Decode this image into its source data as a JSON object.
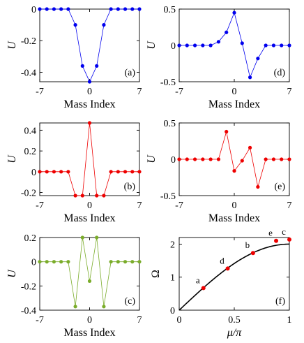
{
  "panels": [
    {
      "id": "a",
      "type": "line",
      "panel_label": "(a)",
      "ylabel": "U",
      "xlabel": "Mass Index",
      "color": "#0000ee",
      "xlim": [
        -7,
        7
      ],
      "ylim": [
        -0.46,
        0.0
      ],
      "yticks": [
        0,
        -0.2,
        -0.4
      ],
      "ytick_labels": [
        "0",
        "-0.2",
        "-0.4"
      ],
      "xticks": [
        -7,
        0,
        7
      ],
      "xtick_labels": [
        "-7",
        "0",
        "7"
      ],
      "x": [
        -7,
        -6,
        -5,
        -4,
        -3,
        -2,
        -1,
        0,
        1,
        2,
        3,
        4,
        5,
        6,
        7
      ],
      "y": [
        0,
        0,
        0,
        0,
        0,
        -0.1,
        -0.36,
        -0.46,
        -0.36,
        -0.1,
        0,
        0,
        0,
        0,
        0
      ]
    },
    {
      "id": "b",
      "type": "line",
      "panel_label": "(b)",
      "ylabel": "U",
      "xlabel": "Mass Index",
      "color": "#ee0000",
      "xlim": [
        -7,
        7
      ],
      "ylim": [
        -0.23,
        0.47
      ],
      "yticks": [
        0.4,
        0.2,
        0,
        -0.2
      ],
      "ytick_labels": [
        "0.4",
        "0.2",
        "0",
        "-0.2"
      ],
      "xticks": [
        -7,
        0,
        7
      ],
      "xtick_labels": [
        "-7",
        "0",
        "7"
      ],
      "x": [
        -7,
        -6,
        -5,
        -4,
        -3,
        -2,
        -1,
        0,
        1,
        2,
        3,
        4,
        5,
        6,
        7
      ],
      "y": [
        0,
        0,
        0,
        0,
        0,
        -0.23,
        -0.23,
        0.47,
        -0.23,
        -0.23,
        0,
        0,
        0,
        0,
        0
      ]
    },
    {
      "id": "c",
      "type": "line",
      "panel_label": "(c)",
      "ylabel": "U",
      "xlabel": "Mass Index",
      "color": "#7aac2a",
      "xlim": [
        -7,
        7
      ],
      "ylim": [
        -0.4,
        0.2
      ],
      "yticks": [
        0.2,
        0,
        -0.2,
        -0.4
      ],
      "ytick_labels": [
        "0.2",
        "0",
        "-0.2",
        "-0.4"
      ],
      "xticks": [
        -7,
        0,
        7
      ],
      "xtick_labels": [
        "-7",
        "0",
        "7"
      ],
      "x": [
        -7,
        -6,
        -5,
        -4,
        -3,
        -2,
        -1,
        0,
        1,
        2,
        3,
        4,
        5,
        6,
        7
      ],
      "y": [
        0,
        0,
        0,
        0,
        0,
        -0.37,
        0.2,
        -0.16,
        0.2,
        -0.37,
        0,
        0,
        0,
        0,
        0
      ]
    },
    {
      "id": "d",
      "type": "line",
      "panel_label": "(d)",
      "ylabel": "U",
      "xlabel": "Mass Index",
      "color": "#0000ee",
      "xlim": [
        -7,
        7
      ],
      "ylim": [
        -0.5,
        0.5
      ],
      "yticks": [
        0.5,
        0,
        -0.5
      ],
      "ytick_labels": [
        "0.5",
        "0",
        "-0.5"
      ],
      "xticks": [
        -7,
        0,
        7
      ],
      "xtick_labels": [
        "-7",
        "0",
        "7"
      ],
      "x": [
        -7,
        -6,
        -5,
        -4,
        -3,
        -2,
        -1,
        0,
        1,
        2,
        3,
        4,
        5,
        6,
        7
      ],
      "y": [
        0,
        0,
        0,
        0,
        0,
        0.05,
        0.18,
        0.45,
        0.03,
        -0.44,
        -0.18,
        0,
        0,
        0,
        0
      ]
    },
    {
      "id": "e",
      "type": "line",
      "panel_label": "(e)",
      "ylabel": "U",
      "xlabel": "Mass Index",
      "color": "#ee0000",
      "xlim": [
        -7,
        7
      ],
      "ylim": [
        -0.5,
        0.5
      ],
      "yticks": [
        0.5,
        0,
        -0.5
      ],
      "ytick_labels": [
        "0.5",
        "0",
        "-0.5"
      ],
      "xticks": [
        -7,
        0,
        7
      ],
      "xtick_labels": [
        "-7",
        "0",
        "7"
      ],
      "x": [
        -7,
        -6,
        -5,
        -4,
        -3,
        -2,
        -1,
        0,
        1,
        2,
        3,
        4,
        5,
        6,
        7
      ],
      "y": [
        0,
        0,
        0,
        0,
        0,
        0,
        0.38,
        -0.16,
        -0.02,
        0.16,
        -0.38,
        0,
        0,
        0,
        0
      ]
    }
  ],
  "panel_f": {
    "id": "f",
    "type": "line",
    "panel_label": "(f)",
    "ylabel": "Ω",
    "xlabel": "μ/π",
    "xlim": [
      0,
      1
    ],
    "ylim": [
      0,
      2.2
    ],
    "xticks": [
      0,
      0.5,
      1
    ],
    "xtick_labels": [
      "0",
      "0.5",
      "1"
    ],
    "yticks": [
      0,
      1,
      2
    ],
    "ytick_labels": [
      "0",
      "1",
      "2"
    ],
    "curve": "Ω = 2 sin(μ/2)",
    "curve_color": "#000000",
    "point_color": "#ee0000",
    "points": [
      {
        "label": "a",
        "x": 0.22,
        "y": 0.67
      },
      {
        "label": "d",
        "x": 0.44,
        "y": 1.26
      },
      {
        "label": "b",
        "x": 0.67,
        "y": 1.73
      },
      {
        "label": "e",
        "x": 0.88,
        "y": 2.1
      },
      {
        "label": "c",
        "x": 1.0,
        "y": 2.14
      }
    ]
  }
}
